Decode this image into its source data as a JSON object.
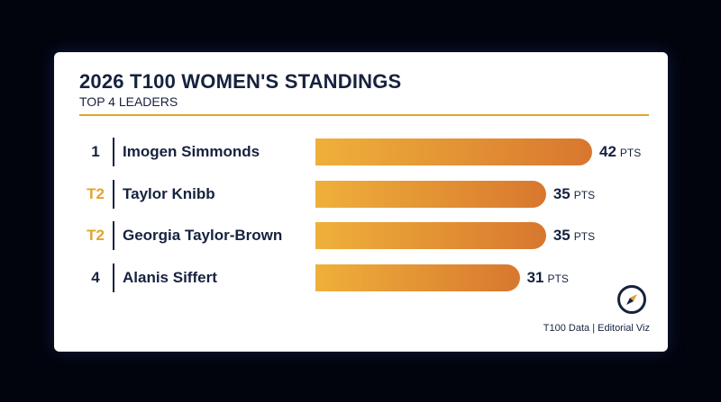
{
  "title": "2026 T100 WOMEN'S STANDINGS",
  "subtitle": "TOP 4 LEADERS",
  "source": "T100 Data | Editorial Viz",
  "unit": "PTS",
  "colors": {
    "background": "#02040d",
    "card": "#ffffff",
    "text": "#16223f",
    "accent": "#e2a42e",
    "bar_start": "#efb03a",
    "bar_end": "#d8772f"
  },
  "logo_icon": "compass-icon",
  "chart_data": {
    "type": "bar",
    "orientation": "horizontal",
    "title": "2026 T100 WOMEN'S STANDINGS",
    "subtitle": "TOP 4 LEADERS",
    "categories": [
      "Imogen Simmonds",
      "Taylor Knibb",
      "Georgia Taylor-Brown",
      "Alanis Siffert"
    ],
    "ranks": [
      "1",
      "T2",
      "T2",
      "4"
    ],
    "values": [
      42,
      35,
      35,
      31
    ],
    "unit": "PTS",
    "xlim": [
      0,
      42
    ],
    "grid": false,
    "legend": "none"
  }
}
